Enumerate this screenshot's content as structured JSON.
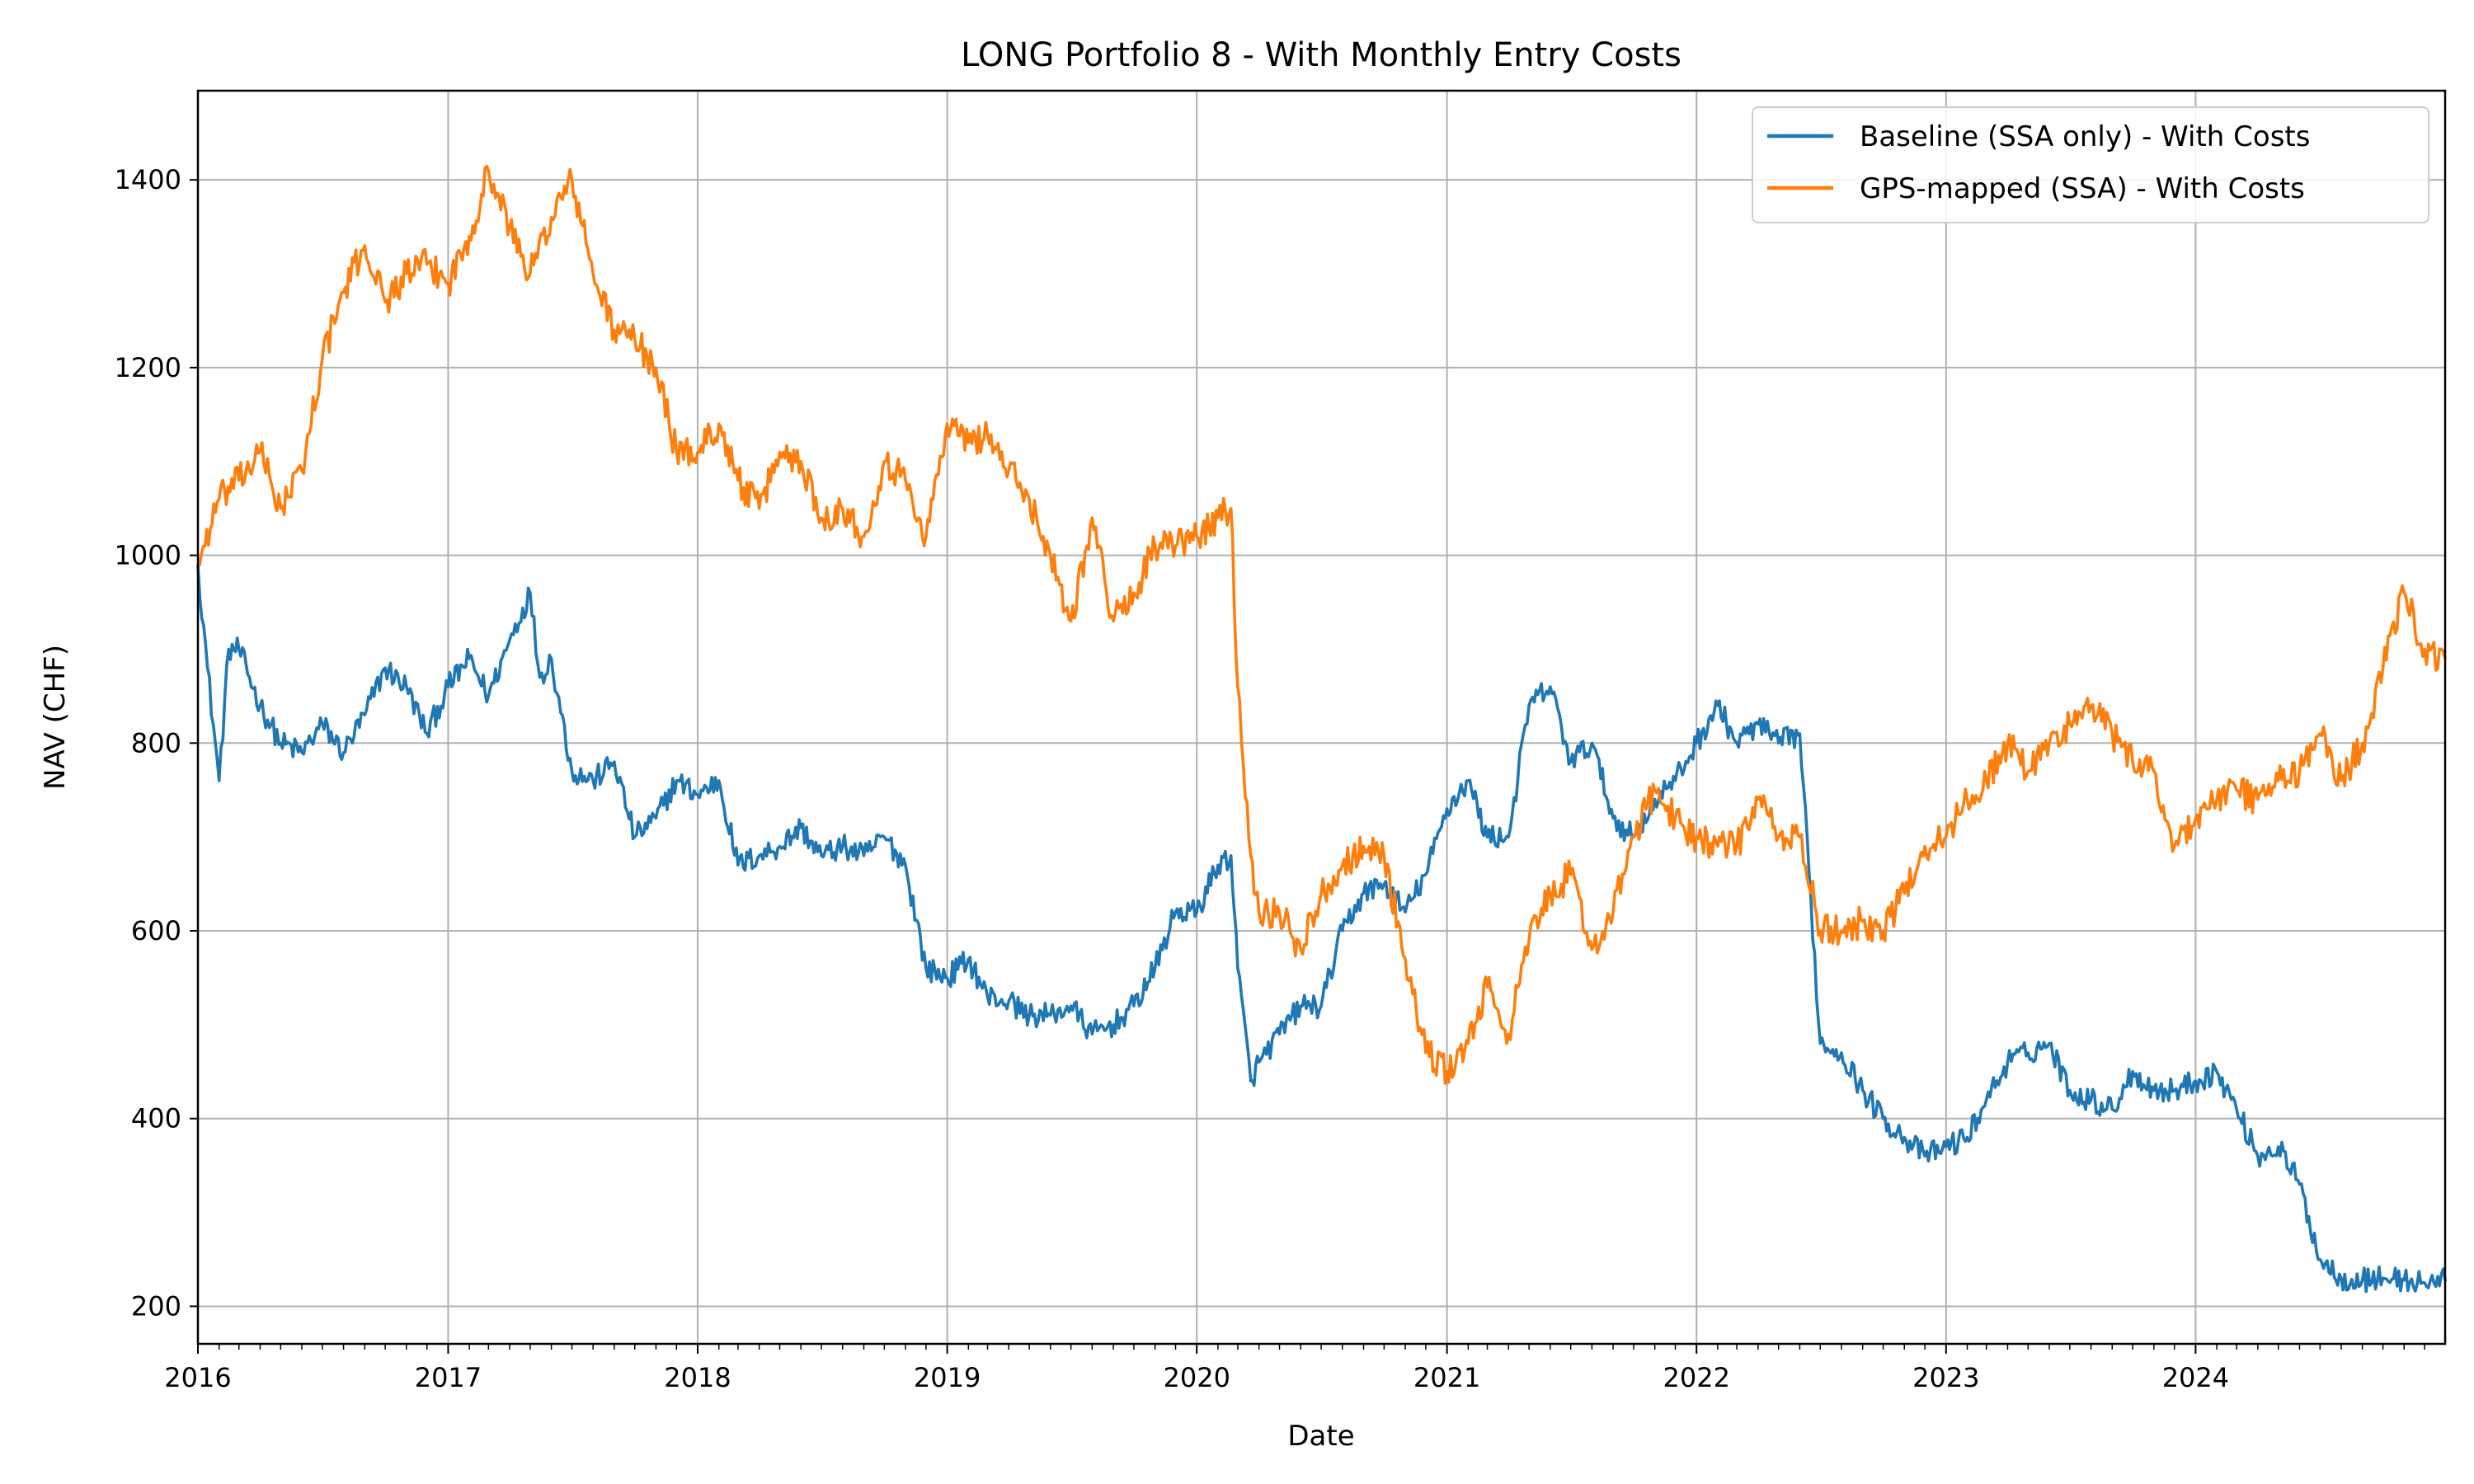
{
  "chart_data": {
    "type": "line",
    "title": "LONG Portfolio 8 - With Monthly Entry Costs",
    "xlabel": "Date",
    "ylabel": "NAV (CHF)",
    "xlim": [
      "2016-01-01",
      "2024-12-31"
    ],
    "ylim": [
      160,
      1495
    ],
    "x_ticks": [
      "2016",
      "2017",
      "2018",
      "2019",
      "2020",
      "2021",
      "2022",
      "2023",
      "2024"
    ],
    "y_ticks": [
      200,
      400,
      600,
      800,
      1000,
      1200,
      1400
    ],
    "grid": true,
    "legend_position": "top-right",
    "series": [
      {
        "name": "Baseline (SSA only) - With Costs",
        "color": "#1f77b4",
        "points": [
          [
            "2016-01-01",
            990
          ],
          [
            "2016-01-15",
            880
          ],
          [
            "2016-02-01",
            760
          ],
          [
            "2016-02-15",
            900
          ],
          [
            "2016-03-01",
            900
          ],
          [
            "2016-04-01",
            840
          ],
          [
            "2016-05-01",
            800
          ],
          [
            "2016-06-01",
            790
          ],
          [
            "2016-07-01",
            820
          ],
          [
            "2016-08-01",
            790
          ],
          [
            "2016-09-01",
            830
          ],
          [
            "2016-10-01",
            880
          ],
          [
            "2016-11-01",
            860
          ],
          [
            "2016-12-01",
            810
          ],
          [
            "2017-01-01",
            860
          ],
          [
            "2017-02-01",
            890
          ],
          [
            "2017-03-01",
            850
          ],
          [
            "2017-04-01",
            910
          ],
          [
            "2017-05-01",
            960
          ],
          [
            "2017-05-15",
            870
          ],
          [
            "2017-06-01",
            890
          ],
          [
            "2017-07-01",
            770
          ],
          [
            "2017-08-01",
            760
          ],
          [
            "2017-09-01",
            780
          ],
          [
            "2017-10-01",
            700
          ],
          [
            "2017-11-01",
            720
          ],
          [
            "2017-12-01",
            760
          ],
          [
            "2018-01-01",
            745
          ],
          [
            "2018-02-01",
            760
          ],
          [
            "2018-03-01",
            670
          ],
          [
            "2018-04-01",
            680
          ],
          [
            "2018-05-01",
            690
          ],
          [
            "2018-06-01",
            710
          ],
          [
            "2018-07-01",
            680
          ],
          [
            "2018-08-01",
            690
          ],
          [
            "2018-09-01",
            680
          ],
          [
            "2018-10-01",
            700
          ],
          [
            "2018-11-01",
            670
          ],
          [
            "2018-12-01",
            560
          ],
          [
            "2019-01-01",
            550
          ],
          [
            "2019-02-01",
            570
          ],
          [
            "2019-03-01",
            530
          ],
          [
            "2019-04-01",
            525
          ],
          [
            "2019-05-01",
            510
          ],
          [
            "2019-06-01",
            510
          ],
          [
            "2019-07-01",
            520
          ],
          [
            "2019-08-01",
            490
          ],
          [
            "2019-09-01",
            500
          ],
          [
            "2019-10-01",
            520
          ],
          [
            "2019-11-01",
            560
          ],
          [
            "2019-12-01",
            620
          ],
          [
            "2020-01-01",
            620
          ],
          [
            "2020-02-01",
            670
          ],
          [
            "2020-02-20",
            680
          ],
          [
            "2020-03-01",
            560
          ],
          [
            "2020-03-20",
            440
          ],
          [
            "2020-04-01",
            460
          ],
          [
            "2020-05-01",
            490
          ],
          [
            "2020-06-01",
            520
          ],
          [
            "2020-07-01",
            520
          ],
          [
            "2020-08-01",
            600
          ],
          [
            "2020-09-01",
            640
          ],
          [
            "2020-10-01",
            650
          ],
          [
            "2020-11-01",
            620
          ],
          [
            "2020-12-01",
            660
          ],
          [
            "2021-01-01",
            730
          ],
          [
            "2021-02-01",
            760
          ],
          [
            "2021-03-01",
            700
          ],
          [
            "2021-04-01",
            700
          ],
          [
            "2021-05-01",
            840
          ],
          [
            "2021-06-01",
            860
          ],
          [
            "2021-07-01",
            780
          ],
          [
            "2021-08-01",
            800
          ],
          [
            "2021-09-01",
            720
          ],
          [
            "2021-10-01",
            700
          ],
          [
            "2021-11-01",
            740
          ],
          [
            "2021-12-01",
            760
          ],
          [
            "2022-01-01",
            800
          ],
          [
            "2022-02-01",
            840
          ],
          [
            "2022-03-01",
            800
          ],
          [
            "2022-04-01",
            820
          ],
          [
            "2022-05-01",
            800
          ],
          [
            "2022-06-01",
            810
          ],
          [
            "2022-07-01",
            480
          ],
          [
            "2022-08-01",
            470
          ],
          [
            "2022-09-01",
            430
          ],
          [
            "2022-10-01",
            400
          ],
          [
            "2022-11-01",
            380
          ],
          [
            "2022-12-01",
            360
          ],
          [
            "2023-01-01",
            370
          ],
          [
            "2023-02-01",
            380
          ],
          [
            "2023-03-01",
            420
          ],
          [
            "2023-04-01",
            460
          ],
          [
            "2023-05-01",
            470
          ],
          [
            "2023-06-01",
            480
          ],
          [
            "2023-07-01",
            430
          ],
          [
            "2023-08-01",
            420
          ],
          [
            "2023-09-01",
            410
          ],
          [
            "2023-10-01",
            450
          ],
          [
            "2023-11-01",
            430
          ],
          [
            "2023-12-01",
            430
          ],
          [
            "2024-01-01",
            440
          ],
          [
            "2024-02-01",
            450
          ],
          [
            "2024-03-01",
            410
          ],
          [
            "2024-04-01",
            360
          ],
          [
            "2024-05-01",
            370
          ],
          [
            "2024-06-01",
            330
          ],
          [
            "2024-07-01",
            250
          ],
          [
            "2024-08-01",
            230
          ],
          [
            "2024-09-01",
            228
          ],
          [
            "2024-10-01",
            230
          ],
          [
            "2024-11-01",
            228
          ],
          [
            "2024-12-01",
            225
          ],
          [
            "2024-12-31",
            228
          ]
        ]
      },
      {
        "name": "GPS-mapped (SSA) - With Costs",
        "color": "#ff7f0e",
        "points": [
          [
            "2016-01-01",
            990
          ],
          [
            "2016-02-01",
            1060
          ],
          [
            "2016-03-01",
            1080
          ],
          [
            "2016-04-01",
            1110
          ],
          [
            "2016-05-01",
            1050
          ],
          [
            "2016-06-01",
            1090
          ],
          [
            "2016-07-01",
            1210
          ],
          [
            "2016-08-01",
            1280
          ],
          [
            "2016-09-01",
            1330
          ],
          [
            "2016-10-01",
            1270
          ],
          [
            "2016-11-01",
            1300
          ],
          [
            "2016-12-01",
            1310
          ],
          [
            "2017-01-01",
            1290
          ],
          [
            "2017-02-01",
            1340
          ],
          [
            "2017-03-01",
            1410
          ],
          [
            "2017-04-01",
            1350
          ],
          [
            "2017-05-01",
            1300
          ],
          [
            "2017-06-01",
            1360
          ],
          [
            "2017-07-01",
            1400
          ],
          [
            "2017-08-01",
            1300
          ],
          [
            "2017-09-01",
            1240
          ],
          [
            "2017-10-01",
            1230
          ],
          [
            "2017-11-01",
            1200
          ],
          [
            "2017-12-01",
            1110
          ],
          [
            "2018-01-01",
            1110
          ],
          [
            "2018-02-01",
            1140
          ],
          [
            "2018-03-01",
            1080
          ],
          [
            "2018-04-01",
            1050
          ],
          [
            "2018-05-01",
            1110
          ],
          [
            "2018-06-01",
            1100
          ],
          [
            "2018-07-01",
            1040
          ],
          [
            "2018-08-01",
            1050
          ],
          [
            "2018-09-01",
            1020
          ],
          [
            "2018-10-01",
            1100
          ],
          [
            "2018-11-01",
            1080
          ],
          [
            "2018-12-01",
            1020
          ],
          [
            "2019-01-01",
            1140
          ],
          [
            "2019-02-01",
            1120
          ],
          [
            "2019-03-01",
            1130
          ],
          [
            "2019-04-01",
            1090
          ],
          [
            "2019-05-01",
            1060
          ],
          [
            "2019-06-01",
            1000
          ],
          [
            "2019-07-01",
            930
          ],
          [
            "2019-08-01",
            1040
          ],
          [
            "2019-09-01",
            930
          ],
          [
            "2019-10-01",
            960
          ],
          [
            "2019-11-01",
            1010
          ],
          [
            "2019-12-01",
            1010
          ],
          [
            "2020-01-01",
            1020
          ],
          [
            "2020-02-01",
            1040
          ],
          [
            "2020-02-20",
            1050
          ],
          [
            "2020-03-01",
            860
          ],
          [
            "2020-03-20",
            680
          ],
          [
            "2020-04-01",
            620
          ],
          [
            "2020-05-01",
            620
          ],
          [
            "2020-06-01",
            580
          ],
          [
            "2020-07-01",
            640
          ],
          [
            "2020-08-01",
            670
          ],
          [
            "2020-09-01",
            690
          ],
          [
            "2020-10-01",
            680
          ],
          [
            "2020-11-01",
            570
          ],
          [
            "2020-12-01",
            470
          ],
          [
            "2021-01-01",
            450
          ],
          [
            "2021-02-01",
            480
          ],
          [
            "2021-03-01",
            540
          ],
          [
            "2021-04-01",
            490
          ],
          [
            "2021-05-01",
            590
          ],
          [
            "2021-06-01",
            640
          ],
          [
            "2021-07-01",
            660
          ],
          [
            "2021-08-01",
            580
          ],
          [
            "2021-09-01",
            620
          ],
          [
            "2021-10-01",
            700
          ],
          [
            "2021-11-01",
            750
          ],
          [
            "2021-12-01",
            720
          ],
          [
            "2022-01-01",
            700
          ],
          [
            "2022-02-01",
            690
          ],
          [
            "2022-03-01",
            690
          ],
          [
            "2022-04-01",
            740
          ],
          [
            "2022-05-01",
            700
          ],
          [
            "2022-06-01",
            700
          ],
          [
            "2022-07-01",
            600
          ],
          [
            "2022-08-01",
            600
          ],
          [
            "2022-09-01",
            610
          ],
          [
            "2022-10-01",
            600
          ],
          [
            "2022-11-01",
            640
          ],
          [
            "2022-12-01",
            690
          ],
          [
            "2023-01-01",
            700
          ],
          [
            "2023-02-01",
            740
          ],
          [
            "2023-03-01",
            760
          ],
          [
            "2023-04-01",
            800
          ],
          [
            "2023-05-01",
            770
          ],
          [
            "2023-06-01",
            800
          ],
          [
            "2023-07-01",
            820
          ],
          [
            "2023-08-01",
            840
          ],
          [
            "2023-09-01",
            810
          ],
          [
            "2023-10-01",
            780
          ],
          [
            "2023-11-01",
            770
          ],
          [
            "2023-12-01",
            690
          ],
          [
            "2024-01-01",
            720
          ],
          [
            "2024-02-01",
            740
          ],
          [
            "2024-03-01",
            750
          ],
          [
            "2024-04-01",
            740
          ],
          [
            "2024-05-01",
            760
          ],
          [
            "2024-06-01",
            770
          ],
          [
            "2024-07-01",
            810
          ],
          [
            "2024-08-01",
            760
          ],
          [
            "2024-09-01",
            800
          ],
          [
            "2024-10-01",
            880
          ],
          [
            "2024-11-01",
            960
          ],
          [
            "2024-12-01",
            900
          ],
          [
            "2024-12-31",
            890
          ]
        ]
      }
    ]
  }
}
